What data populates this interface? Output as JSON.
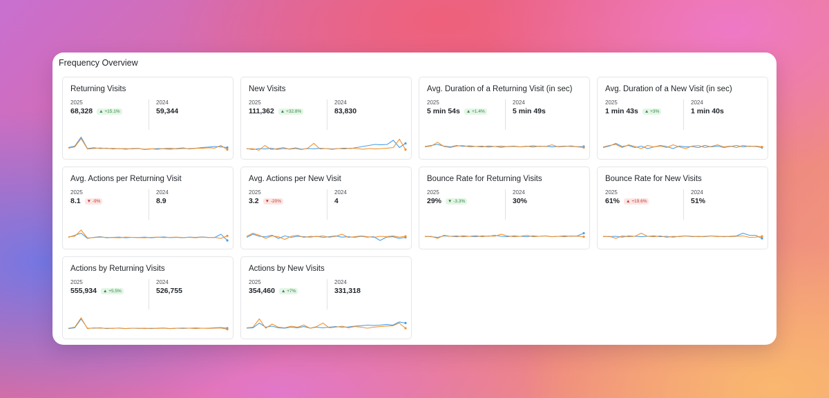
{
  "panel": {
    "title": "Frequency Overview"
  },
  "colors": {
    "current": "#4a9ee8",
    "previous": "#f0922e",
    "up": "#2f8a3e",
    "down": "#c8382f"
  },
  "cards": [
    {
      "title": "Returning Visits",
      "year_current": "2025",
      "value_current": "68,328",
      "change": "▲ +15.1%",
      "trend": "up",
      "year_previous": "2024",
      "value_previous": "59,344",
      "chart_data": {
        "type": "line",
        "series": [
          {
            "values": [
              0.35,
              0.42,
              0.85,
              0.3,
              0.34,
              0.3,
              0.32,
              0.28,
              0.3,
              0.27,
              0.3,
              0.31,
              0.25,
              0.28,
              0.3,
              0.29,
              0.27,
              0.3,
              0.33,
              0.28,
              0.31,
              0.35,
              0.37,
              0.4,
              0.38,
              0.35
            ]
          },
          {
            "values": [
              0.32,
              0.38,
              0.78,
              0.28,
              0.3,
              0.33,
              0.3,
              0.31,
              0.29,
              0.3,
              0.28,
              0.3,
              0.27,
              0.29,
              0.26,
              0.3,
              0.32,
              0.28,
              0.3,
              0.3,
              0.32,
              0.31,
              0.34,
              0.32,
              0.45,
              0.25
            ]
          }
        ]
      }
    },
    {
      "title": "New Visits",
      "year_current": "2025",
      "value_current": "111,362",
      "change": "▲ +32.8%",
      "trend": "up",
      "year_previous": "2024",
      "value_previous": "83,830",
      "chart_data": {
        "type": "line",
        "series": [
          {
            "values": [
              0.3,
              0.25,
              0.3,
              0.28,
              0.32,
              0.26,
              0.3,
              0.28,
              0.33,
              0.27,
              0.3,
              0.29,
              0.31,
              0.3,
              0.28,
              0.3,
              0.32,
              0.3,
              0.35,
              0.4,
              0.45,
              0.5,
              0.48,
              0.5,
              0.7,
              0.35,
              0.55
            ]
          },
          {
            "values": [
              0.28,
              0.3,
              0.22,
              0.45,
              0.25,
              0.3,
              0.35,
              0.27,
              0.3,
              0.25,
              0.32,
              0.55,
              0.28,
              0.3,
              0.26,
              0.3,
              0.28,
              0.32,
              0.3,
              0.27,
              0.3,
              0.28,
              0.3,
              0.32,
              0.35,
              0.75,
              0.25
            ]
          }
        ]
      }
    },
    {
      "title": "Avg. Duration of a Returning Visit (in sec)",
      "year_current": "2025",
      "value_current": "5 min 54s",
      "change": "▲ +1.4%",
      "trend": "up",
      "year_previous": "2024",
      "value_previous": "5 min 49s",
      "chart_data": {
        "type": "line",
        "series": [
          {
            "values": [
              0.4,
              0.45,
              0.5,
              0.42,
              0.38,
              0.45,
              0.4,
              0.43,
              0.4,
              0.38,
              0.42,
              0.4,
              0.36,
              0.4,
              0.42,
              0.38,
              0.4,
              0.43,
              0.4,
              0.41,
              0.38,
              0.4,
              0.42,
              0.4,
              0.39,
              0.4
            ]
          },
          {
            "values": [
              0.38,
              0.42,
              0.6,
              0.4,
              0.35,
              0.42,
              0.45,
              0.38,
              0.4,
              0.42,
              0.37,
              0.4,
              0.42,
              0.39,
              0.4,
              0.38,
              0.42,
              0.37,
              0.42,
              0.4,
              0.48,
              0.38,
              0.4,
              0.43,
              0.38,
              0.35
            ]
          }
        ]
      }
    },
    {
      "title": "Avg. Duration of a New Visit (in sec)",
      "year_current": "2025",
      "value_current": "1 min 43s",
      "change": "▲ +3%",
      "trend": "up",
      "year_previous": "2024",
      "value_previous": "1 min 40s",
      "chart_data": {
        "type": "line",
        "series": [
          {
            "values": [
              0.35,
              0.42,
              0.55,
              0.4,
              0.45,
              0.35,
              0.42,
              0.3,
              0.38,
              0.45,
              0.4,
              0.3,
              0.42,
              0.38,
              0.4,
              0.35,
              0.45,
              0.38,
              0.42,
              0.35,
              0.4,
              0.45,
              0.38,
              0.42,
              0.4,
              0.35
            ]
          },
          {
            "values": [
              0.38,
              0.45,
              0.5,
              0.35,
              0.48,
              0.4,
              0.3,
              0.45,
              0.38,
              0.42,
              0.35,
              0.48,
              0.38,
              0.3,
              0.42,
              0.45,
              0.35,
              0.4,
              0.48,
              0.38,
              0.42,
              0.35,
              0.45,
              0.4,
              0.42,
              0.38
            ]
          }
        ]
      }
    },
    {
      "title": "Avg. Actions per Returning Visit",
      "year_current": "2025",
      "value_current": "8.1",
      "change": "▼ -9%",
      "trend": "down",
      "year_previous": "2024",
      "value_previous": "8.9",
      "chart_data": {
        "type": "line",
        "series": [
          {
            "values": [
              0.35,
              0.45,
              0.55,
              0.3,
              0.35,
              0.38,
              0.33,
              0.35,
              0.36,
              0.33,
              0.35,
              0.34,
              0.36,
              0.33,
              0.35,
              0.37,
              0.34,
              0.35,
              0.33,
              0.36,
              0.35,
              0.37,
              0.35,
              0.34,
              0.5,
              0.2
            ]
          },
          {
            "values": [
              0.38,
              0.4,
              0.7,
              0.32,
              0.34,
              0.36,
              0.35,
              0.34,
              0.33,
              0.36,
              0.35,
              0.34,
              0.33,
              0.35,
              0.36,
              0.34,
              0.35,
              0.36,
              0.34,
              0.35,
              0.33,
              0.36,
              0.34,
              0.35,
              0.3,
              0.42
            ]
          }
        ]
      }
    },
    {
      "title": "Avg. Actions per New Visit",
      "year_current": "2025",
      "value_current": "3.2",
      "change": "▼ -20%",
      "trend": "down",
      "year_previous": "2024",
      "value_previous": "4",
      "chart_data": {
        "type": "line",
        "series": [
          {
            "values": [
              0.35,
              0.5,
              0.4,
              0.38,
              0.45,
              0.3,
              0.42,
              0.35,
              0.4,
              0.38,
              0.36,
              0.4,
              0.35,
              0.38,
              0.42,
              0.36,
              0.38,
              0.35,
              0.4,
              0.36,
              0.38,
              0.2,
              0.36,
              0.38,
              0.3,
              0.35
            ]
          },
          {
            "values": [
              0.4,
              0.55,
              0.45,
              0.3,
              0.42,
              0.38,
              0.25,
              0.4,
              0.45,
              0.35,
              0.4,
              0.38,
              0.42,
              0.35,
              0.4,
              0.5,
              0.35,
              0.38,
              0.42,
              0.38,
              0.35,
              0.4,
              0.38,
              0.42,
              0.36,
              0.4
            ]
          }
        ]
      }
    },
    {
      "title": "Bounce Rate for Returning Visits",
      "year_current": "2025",
      "value_current": "29%",
      "change": "▼ -3.3%",
      "trend": "up",
      "year_previous": "2024",
      "value_previous": "30%",
      "chart_data": {
        "type": "line",
        "series": [
          {
            "values": [
              0.4,
              0.38,
              0.35,
              0.42,
              0.4,
              0.38,
              0.42,
              0.4,
              0.38,
              0.42,
              0.4,
              0.45,
              0.4,
              0.38,
              0.42,
              0.4,
              0.38,
              0.42,
              0.4,
              0.42,
              0.38,
              0.4,
              0.42,
              0.4,
              0.42,
              0.55
            ]
          },
          {
            "values": [
              0.38,
              0.4,
              0.3,
              0.45,
              0.4,
              0.42,
              0.38,
              0.4,
              0.43,
              0.38,
              0.42,
              0.4,
              0.5,
              0.42,
              0.38,
              0.4,
              0.45,
              0.38,
              0.4,
              0.42,
              0.38,
              0.4,
              0.38,
              0.42,
              0.4,
              0.38
            ]
          }
        ]
      }
    },
    {
      "title": "Bounce Rate for New Visits",
      "year_current": "2025",
      "value_current": "61%",
      "change": "▲ +19.6%",
      "trend": "down",
      "year_previous": "2024",
      "value_previous": "51%",
      "chart_data": {
        "type": "line",
        "series": [
          {
            "values": [
              0.4,
              0.38,
              0.4,
              0.36,
              0.42,
              0.4,
              0.38,
              0.4,
              0.42,
              0.38,
              0.4,
              0.36,
              0.4,
              0.42,
              0.38,
              0.4,
              0.38,
              0.42,
              0.4,
              0.38,
              0.4,
              0.42,
              0.55,
              0.45,
              0.45,
              0.3
            ]
          },
          {
            "values": [
              0.38,
              0.4,
              0.3,
              0.42,
              0.38,
              0.4,
              0.55,
              0.4,
              0.38,
              0.42,
              0.35,
              0.4,
              0.38,
              0.42,
              0.4,
              0.38,
              0.4,
              0.42,
              0.38,
              0.4,
              0.38,
              0.4,
              0.42,
              0.35,
              0.36,
              0.4
            ]
          }
        ]
      }
    },
    {
      "title": "Actions by Returning Visits",
      "year_current": "2025",
      "value_current": "555,934",
      "change": "▲ +5.5%",
      "trend": "up",
      "year_previous": "2024",
      "value_previous": "526,755",
      "chart_data": {
        "type": "line",
        "series": [
          {
            "values": [
              0.28,
              0.32,
              0.75,
              0.3,
              0.3,
              0.32,
              0.28,
              0.3,
              0.3,
              0.28,
              0.3,
              0.29,
              0.3,
              0.28,
              0.3,
              0.31,
              0.28,
              0.3,
              0.29,
              0.3,
              0.31,
              0.3,
              0.3,
              0.32,
              0.33,
              0.3
            ]
          },
          {
            "values": [
              0.3,
              0.35,
              0.8,
              0.28,
              0.32,
              0.3,
              0.3,
              0.29,
              0.31,
              0.28,
              0.3,
              0.3,
              0.28,
              0.3,
              0.29,
              0.3,
              0.28,
              0.3,
              0.31,
              0.3,
              0.28,
              0.3,
              0.29,
              0.3,
              0.31,
              0.25
            ]
          }
        ]
      }
    },
    {
      "title": "Actions by New Visits",
      "year_current": "2025",
      "value_current": "354,460",
      "change": "▲ +7%",
      "trend": "up",
      "year_previous": "2024",
      "value_previous": "331,318",
      "chart_data": {
        "type": "line",
        "series": [
          {
            "values": [
              0.3,
              0.32,
              0.55,
              0.35,
              0.4,
              0.32,
              0.3,
              0.35,
              0.32,
              0.38,
              0.3,
              0.35,
              0.32,
              0.35,
              0.38,
              0.35,
              0.36,
              0.4,
              0.42,
              0.45,
              0.43,
              0.45,
              0.48,
              0.45,
              0.6,
              0.55
            ]
          },
          {
            "values": [
              0.32,
              0.35,
              0.75,
              0.3,
              0.5,
              0.35,
              0.32,
              0.4,
              0.35,
              0.45,
              0.3,
              0.38,
              0.55,
              0.32,
              0.35,
              0.4,
              0.32,
              0.38,
              0.35,
              0.3,
              0.35,
              0.38,
              0.4,
              0.42,
              0.55,
              0.3
            ]
          }
        ]
      }
    }
  ]
}
